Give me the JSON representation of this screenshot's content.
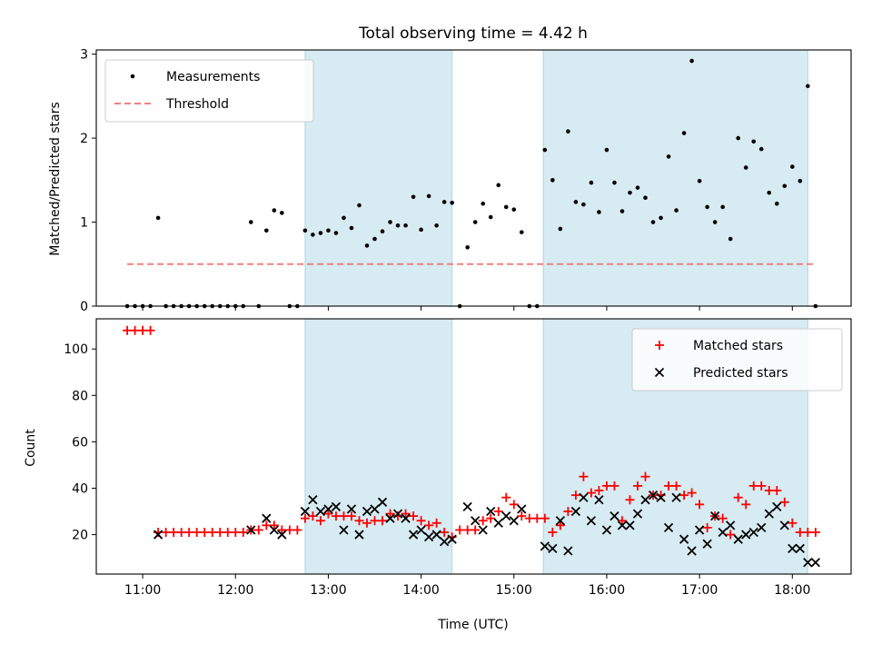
{
  "chart_data": [
    {
      "type": "scatter",
      "title": "Total observing time = 4.42 h",
      "xlabel": "",
      "ylabel": "Matched/Predicted stars",
      "xlim": [
        "10:30",
        "18:38"
      ],
      "ylim": [
        0,
        3.05
      ],
      "yticks": [
        0,
        1,
        2,
        3
      ],
      "ytick_labels": [
        "0",
        "1",
        "2",
        "3"
      ],
      "grid": false,
      "legend_position": "top-left",
      "shaded_intervals": [
        [
          "12:45",
          "14:20"
        ],
        [
          "15:19",
          "18:10"
        ]
      ],
      "threshold": {
        "name": "Threshold",
        "value": 0.5,
        "x_range": [
          "10:50",
          "18:15"
        ],
        "color": "#f08080"
      },
      "series": [
        {
          "name": "Measurements",
          "marker": "dot",
          "color": "#000000",
          "x": [
            "10:50",
            "10:55",
            "11:00",
            "11:05",
            "11:10",
            "11:15",
            "11:20",
            "11:25",
            "11:30",
            "11:35",
            "11:40",
            "11:45",
            "11:50",
            "11:55",
            "12:00",
            "12:05",
            "12:10",
            "12:15",
            "12:20",
            "12:25",
            "12:30",
            "12:35",
            "12:40",
            "12:45",
            "12:50",
            "12:55",
            "13:00",
            "13:05",
            "13:10",
            "13:15",
            "13:20",
            "13:25",
            "13:30",
            "13:35",
            "13:40",
            "13:45",
            "13:50",
            "13:55",
            "14:00",
            "14:05",
            "14:10",
            "14:15",
            "14:20",
            "14:25",
            "14:30",
            "14:35",
            "14:40",
            "14:45",
            "14:50",
            "14:55",
            "15:00",
            "15:05",
            "15:10",
            "15:15",
            "15:20",
            "15:25",
            "15:30",
            "15:35",
            "15:40",
            "15:45",
            "15:50",
            "15:55",
            "16:00",
            "16:05",
            "16:10",
            "16:15",
            "16:20",
            "16:25",
            "16:30",
            "16:35",
            "16:40",
            "16:45",
            "16:50",
            "16:55",
            "17:00",
            "17:05",
            "17:10",
            "17:15",
            "17:20",
            "17:25",
            "17:30",
            "17:35",
            "17:40",
            "17:45",
            "17:50",
            "17:55",
            "18:00",
            "18:05",
            "18:10",
            "18:15"
          ],
          "y": [
            0,
            0,
            0,
            0,
            1.05,
            0,
            0,
            0,
            0,
            0,
            0,
            0,
            0,
            0,
            0,
            0,
            1.0,
            0,
            0.9,
            1.14,
            1.11,
            0,
            0,
            0.9,
            0.85,
            0.87,
            0.9,
            0.87,
            1.05,
            0.93,
            1.2,
            0.72,
            0.8,
            0.89,
            1.0,
            0.96,
            0.96,
            1.3,
            0.91,
            1.31,
            0.96,
            1.24,
            1.23,
            0,
            0.7,
            1.0,
            1.22,
            1.06,
            1.44,
            1.18,
            1.15,
            0.88,
            0,
            0,
            1.86,
            1.5,
            0.92,
            2.08,
            1.24,
            1.21,
            1.47,
            1.12,
            1.86,
            1.47,
            1.13,
            1.35,
            1.41,
            1.29,
            1.0,
            1.05,
            1.78,
            1.14,
            2.06,
            2.92,
            1.49,
            1.18,
            1.0,
            1.18,
            0.8,
            2.0,
            1.65,
            1.96,
            1.87,
            1.35,
            1.22,
            1.43,
            1.66,
            1.49,
            2.62,
            0
          ]
        }
      ]
    },
    {
      "type": "scatter",
      "title": "",
      "xlabel": "Time (UTC)",
      "ylabel": "Count",
      "xlim": [
        "10:30",
        "18:38"
      ],
      "ylim": [
        3,
        113
      ],
      "yticks": [
        20,
        40,
        60,
        80,
        100
      ],
      "ytick_labels": [
        "20",
        "40",
        "60",
        "80",
        "100"
      ],
      "xticks": [
        "11:00",
        "12:00",
        "13:00",
        "14:00",
        "15:00",
        "16:00",
        "17:00",
        "18:00"
      ],
      "xtick_labels": [
        "11:00",
        "12:00",
        "13:00",
        "14:00",
        "15:00",
        "16:00",
        "17:00",
        "18:00"
      ],
      "grid": false,
      "legend_position": "top-right",
      "shaded_intervals": [
        [
          "12:45",
          "14:20"
        ],
        [
          "15:19",
          "18:10"
        ]
      ],
      "series": [
        {
          "name": "Matched stars",
          "marker": "plus",
          "color": "#ff0000",
          "x": [
            "10:50",
            "10:55",
            "11:00",
            "11:05",
            "11:10",
            "11:15",
            "11:20",
            "11:25",
            "11:30",
            "11:35",
            "11:40",
            "11:45",
            "11:50",
            "11:55",
            "12:00",
            "12:05",
            "12:10",
            "12:15",
            "12:20",
            "12:25",
            "12:30",
            "12:35",
            "12:40",
            "12:45",
            "12:50",
            "12:55",
            "13:00",
            "13:05",
            "13:10",
            "13:15",
            "13:20",
            "13:25",
            "13:30",
            "13:35",
            "13:40",
            "13:45",
            "13:50",
            "13:55",
            "14:00",
            "14:05",
            "14:10",
            "14:15",
            "14:20",
            "14:25",
            "14:30",
            "14:35",
            "14:40",
            "14:45",
            "14:50",
            "14:55",
            "15:00",
            "15:05",
            "15:10",
            "15:15",
            "15:20",
            "15:25",
            "15:30",
            "15:35",
            "15:40",
            "15:45",
            "15:50",
            "15:55",
            "16:00",
            "16:05",
            "16:10",
            "16:15",
            "16:20",
            "16:25",
            "16:30",
            "16:35",
            "16:40",
            "16:45",
            "16:50",
            "16:55",
            "17:00",
            "17:05",
            "17:10",
            "17:15",
            "17:20",
            "17:25",
            "17:30",
            "17:35",
            "17:40",
            "17:45",
            "17:50",
            "17:55",
            "18:00",
            "18:05",
            "18:10",
            "18:15"
          ],
          "y": [
            108,
            108,
            108,
            108,
            21,
            21,
            21,
            21,
            21,
            21,
            21,
            21,
            21,
            21,
            21,
            21,
            22,
            22,
            24,
            24,
            22,
            22,
            22,
            27,
            28,
            26,
            29,
            28,
            28,
            28,
            26,
            25,
            26,
            26,
            29,
            28,
            29,
            28,
            26,
            24,
            25,
            21,
            19,
            22,
            22,
            22,
            26,
            27,
            30,
            36,
            33,
            28,
            27,
            27,
            27,
            21,
            24,
            30,
            37,
            45,
            38,
            39,
            41,
            41,
            26,
            35,
            41,
            45,
            37,
            37,
            41,
            41,
            37,
            38,
            33,
            23,
            28,
            27,
            20,
            36,
            33,
            41,
            41,
            39,
            39,
            34,
            25,
            21,
            21,
            21
          ]
        },
        {
          "name": "Predicted stars",
          "marker": "x",
          "color": "#000000",
          "x": [
            "11:10",
            "12:10",
            "12:20",
            "12:25",
            "12:30",
            "12:45",
            "12:50",
            "12:55",
            "13:00",
            "13:05",
            "13:10",
            "13:15",
            "13:20",
            "13:25",
            "13:30",
            "13:35",
            "13:40",
            "13:45",
            "13:50",
            "13:55",
            "14:00",
            "14:05",
            "14:10",
            "14:15",
            "14:20",
            "14:30",
            "14:35",
            "14:40",
            "14:45",
            "14:50",
            "14:55",
            "15:00",
            "15:05",
            "15:20",
            "15:25",
            "15:30",
            "15:35",
            "15:40",
            "15:45",
            "15:50",
            "15:55",
            "16:00",
            "16:05",
            "16:10",
            "16:15",
            "16:20",
            "16:25",
            "16:30",
            "16:35",
            "16:40",
            "16:45",
            "16:50",
            "16:55",
            "17:00",
            "17:05",
            "17:10",
            "17:15",
            "17:20",
            "17:25",
            "17:30",
            "17:35",
            "17:40",
            "17:45",
            "17:50",
            "17:55",
            "18:00",
            "18:05",
            "18:10",
            "18:15"
          ],
          "y": [
            20,
            22,
            27,
            22,
            20,
            30,
            35,
            30,
            31,
            32,
            22,
            31,
            20,
            30,
            31,
            34,
            27,
            29,
            27,
            20,
            22,
            19,
            20,
            17,
            18,
            32,
            26,
            22,
            30,
            25,
            28,
            26,
            31,
            15,
            14,
            26,
            13,
            30,
            36,
            26,
            35,
            22,
            28,
            24,
            24,
            29,
            35,
            37,
            36,
            23,
            36,
            18,
            13,
            22,
            16,
            28,
            21,
            24,
            18,
            20,
            21,
            23,
            29,
            32,
            24,
            14,
            14,
            8,
            8
          ]
        }
      ]
    }
  ]
}
